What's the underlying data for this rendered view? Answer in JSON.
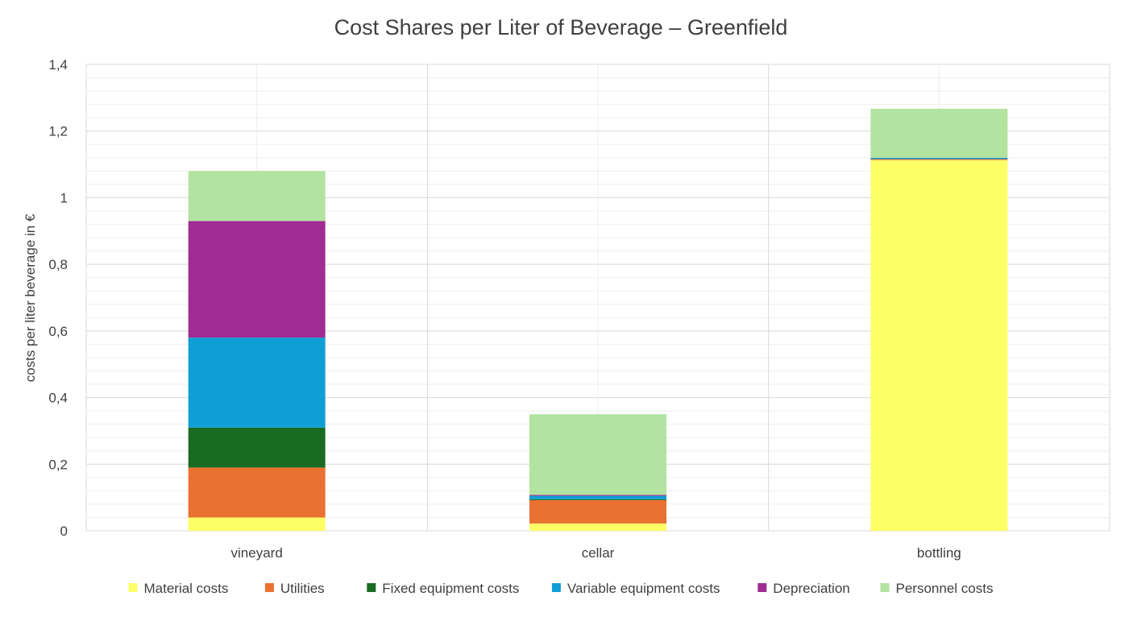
{
  "chart_data": {
    "type": "bar",
    "stacked": true,
    "title": "Cost Shares per Liter of Beverage – Greenfield",
    "xlabel": "",
    "ylabel": "costs per liter beverage in €",
    "ylim": [
      0,
      1.4
    ],
    "yticks": [
      "0",
      "0,2",
      "0,4",
      "0,6",
      "0,8",
      "1",
      "1,2",
      "1,4"
    ],
    "grid": true,
    "legend_position": "bottom",
    "categories": [
      "vineyard",
      "cellar",
      "bottling"
    ],
    "series": [
      {
        "name": "Material costs",
        "color": "#FFFF66",
        "values": [
          0.04,
          0.022,
          1.113
        ]
      },
      {
        "name": "Utilities",
        "color": "#E97132",
        "values": [
          0.15,
          0.07,
          0.003
        ]
      },
      {
        "name": "Fixed equipment costs",
        "color": "#196B24",
        "values": [
          0.12,
          0.003,
          0.0
        ]
      },
      {
        "name": "Variable equipment costs",
        "color": "#0F9ED5",
        "values": [
          0.27,
          0.01,
          0.004
        ]
      },
      {
        "name": "Depreciation",
        "color": "#A02B93",
        "values": [
          0.35,
          0.003,
          0.0
        ]
      },
      {
        "name": "Personnel costs",
        "color": "#B3E3A0",
        "values": [
          0.15,
          0.242,
          0.147
        ]
      }
    ]
  }
}
